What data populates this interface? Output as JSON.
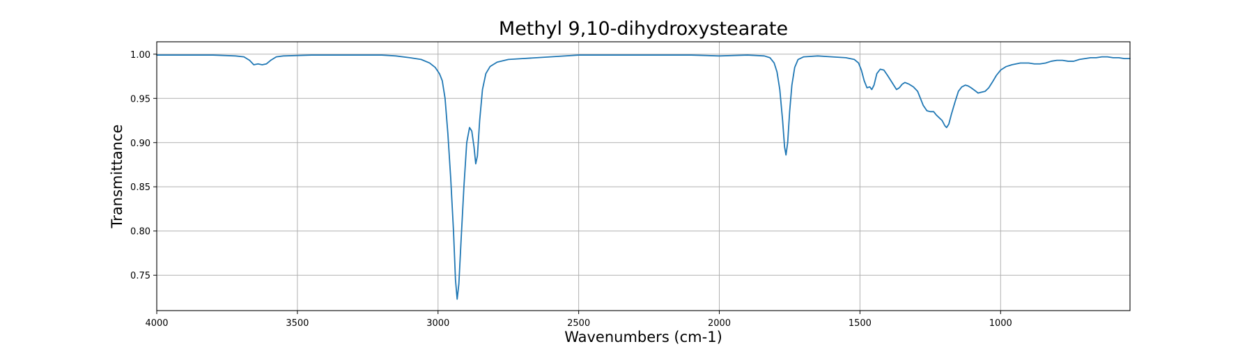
{
  "chart_data": {
    "type": "line",
    "title": "Methyl 9,10-dihydroxystearate",
    "xlabel": "Wavenumbers (cm-1)",
    "ylabel": "Transmittance",
    "xlim": [
      4000,
      540
    ],
    "ylim": [
      0.71,
      1.014
    ],
    "x_reversed": true,
    "grid": true,
    "x_ticks": [
      4000,
      3500,
      3000,
      2500,
      2000,
      1500,
      1000
    ],
    "x_tick_labels": [
      "4000",
      "3500",
      "3000",
      "2500",
      "2000",
      "1500",
      "1000"
    ],
    "y_ticks": [
      0.75,
      0.8,
      0.85,
      0.9,
      0.95,
      1.0
    ],
    "y_tick_labels": [
      "0.75",
      "0.80",
      "0.85",
      "0.90",
      "0.95",
      "1.00"
    ],
    "line_color": "#1f77b4",
    "series": [
      {
        "points": [
          [
            4000,
            0.999
          ],
          [
            3900,
            0.999
          ],
          [
            3800,
            0.999
          ],
          [
            3720,
            0.998
          ],
          [
            3690,
            0.997
          ],
          [
            3670,
            0.993
          ],
          [
            3655,
            0.988
          ],
          [
            3640,
            0.989
          ],
          [
            3625,
            0.988
          ],
          [
            3610,
            0.989
          ],
          [
            3595,
            0.993
          ],
          [
            3575,
            0.997
          ],
          [
            3550,
            0.998
          ],
          [
            3450,
            0.999
          ],
          [
            3300,
            0.999
          ],
          [
            3200,
            0.999
          ],
          [
            3150,
            0.998
          ],
          [
            3100,
            0.996
          ],
          [
            3060,
            0.994
          ],
          [
            3030,
            0.99
          ],
          [
            3010,
            0.985
          ],
          [
            2995,
            0.978
          ],
          [
            2985,
            0.97
          ],
          [
            2975,
            0.95
          ],
          [
            2965,
            0.91
          ],
          [
            2955,
            0.86
          ],
          [
            2945,
            0.8
          ],
          [
            2938,
            0.745
          ],
          [
            2932,
            0.723
          ],
          [
            2926,
            0.74
          ],
          [
            2918,
            0.79
          ],
          [
            2908,
            0.85
          ],
          [
            2898,
            0.9
          ],
          [
            2888,
            0.917
          ],
          [
            2880,
            0.913
          ],
          [
            2872,
            0.895
          ],
          [
            2866,
            0.876
          ],
          [
            2860,
            0.885
          ],
          [
            2852,
            0.925
          ],
          [
            2842,
            0.96
          ],
          [
            2830,
            0.978
          ],
          [
            2815,
            0.986
          ],
          [
            2790,
            0.991
          ],
          [
            2750,
            0.994
          ],
          [
            2700,
            0.995
          ],
          [
            2600,
            0.997
          ],
          [
            2500,
            0.999
          ],
          [
            2300,
            0.999
          ],
          [
            2200,
            0.999
          ],
          [
            2100,
            0.999
          ],
          [
            2000,
            0.998
          ],
          [
            1900,
            0.999
          ],
          [
            1840,
            0.998
          ],
          [
            1820,
            0.996
          ],
          [
            1805,
            0.99
          ],
          [
            1795,
            0.98
          ],
          [
            1785,
            0.96
          ],
          [
            1775,
            0.925
          ],
          [
            1768,
            0.895
          ],
          [
            1763,
            0.886
          ],
          [
            1757,
            0.9
          ],
          [
            1750,
            0.935
          ],
          [
            1742,
            0.965
          ],
          [
            1732,
            0.985
          ],
          [
            1720,
            0.994
          ],
          [
            1700,
            0.997
          ],
          [
            1650,
            0.998
          ],
          [
            1600,
            0.997
          ],
          [
            1550,
            0.996
          ],
          [
            1520,
            0.994
          ],
          [
            1505,
            0.99
          ],
          [
            1495,
            0.982
          ],
          [
            1485,
            0.97
          ],
          [
            1475,
            0.962
          ],
          [
            1465,
            0.963
          ],
          [
            1458,
            0.96
          ],
          [
            1450,
            0.965
          ],
          [
            1440,
            0.978
          ],
          [
            1428,
            0.983
          ],
          [
            1415,
            0.982
          ],
          [
            1402,
            0.976
          ],
          [
            1390,
            0.97
          ],
          [
            1380,
            0.965
          ],
          [
            1370,
            0.96
          ],
          [
            1360,
            0.962
          ],
          [
            1350,
            0.966
          ],
          [
            1340,
            0.968
          ],
          [
            1325,
            0.966
          ],
          [
            1310,
            0.963
          ],
          [
            1295,
            0.958
          ],
          [
            1285,
            0.95
          ],
          [
            1275,
            0.942
          ],
          [
            1262,
            0.936
          ],
          [
            1250,
            0.935
          ],
          [
            1238,
            0.935
          ],
          [
            1228,
            0.931
          ],
          [
            1218,
            0.928
          ],
          [
            1208,
            0.925
          ],
          [
            1198,
            0.919
          ],
          [
            1192,
            0.917
          ],
          [
            1184,
            0.921
          ],
          [
            1175,
            0.932
          ],
          [
            1162,
            0.946
          ],
          [
            1150,
            0.958
          ],
          [
            1138,
            0.963
          ],
          [
            1125,
            0.965
          ],
          [
            1115,
            0.964
          ],
          [
            1105,
            0.962
          ],
          [
            1092,
            0.959
          ],
          [
            1080,
            0.956
          ],
          [
            1068,
            0.957
          ],
          [
            1055,
            0.958
          ],
          [
            1042,
            0.962
          ],
          [
            1030,
            0.968
          ],
          [
            1015,
            0.976
          ],
          [
            1000,
            0.982
          ],
          [
            980,
            0.986
          ],
          [
            960,
            0.988
          ],
          [
            930,
            0.99
          ],
          [
            900,
            0.99
          ],
          [
            880,
            0.989
          ],
          [
            860,
            0.989
          ],
          [
            840,
            0.99
          ],
          [
            820,
            0.992
          ],
          [
            800,
            0.993
          ],
          [
            780,
            0.993
          ],
          [
            760,
            0.992
          ],
          [
            740,
            0.992
          ],
          [
            720,
            0.994
          ],
          [
            700,
            0.995
          ],
          [
            680,
            0.996
          ],
          [
            660,
            0.996
          ],
          [
            640,
            0.997
          ],
          [
            620,
            0.997
          ],
          [
            600,
            0.996
          ],
          [
            580,
            0.996
          ],
          [
            560,
            0.995
          ],
          [
            540,
            0.995
          ]
        ]
      }
    ]
  }
}
